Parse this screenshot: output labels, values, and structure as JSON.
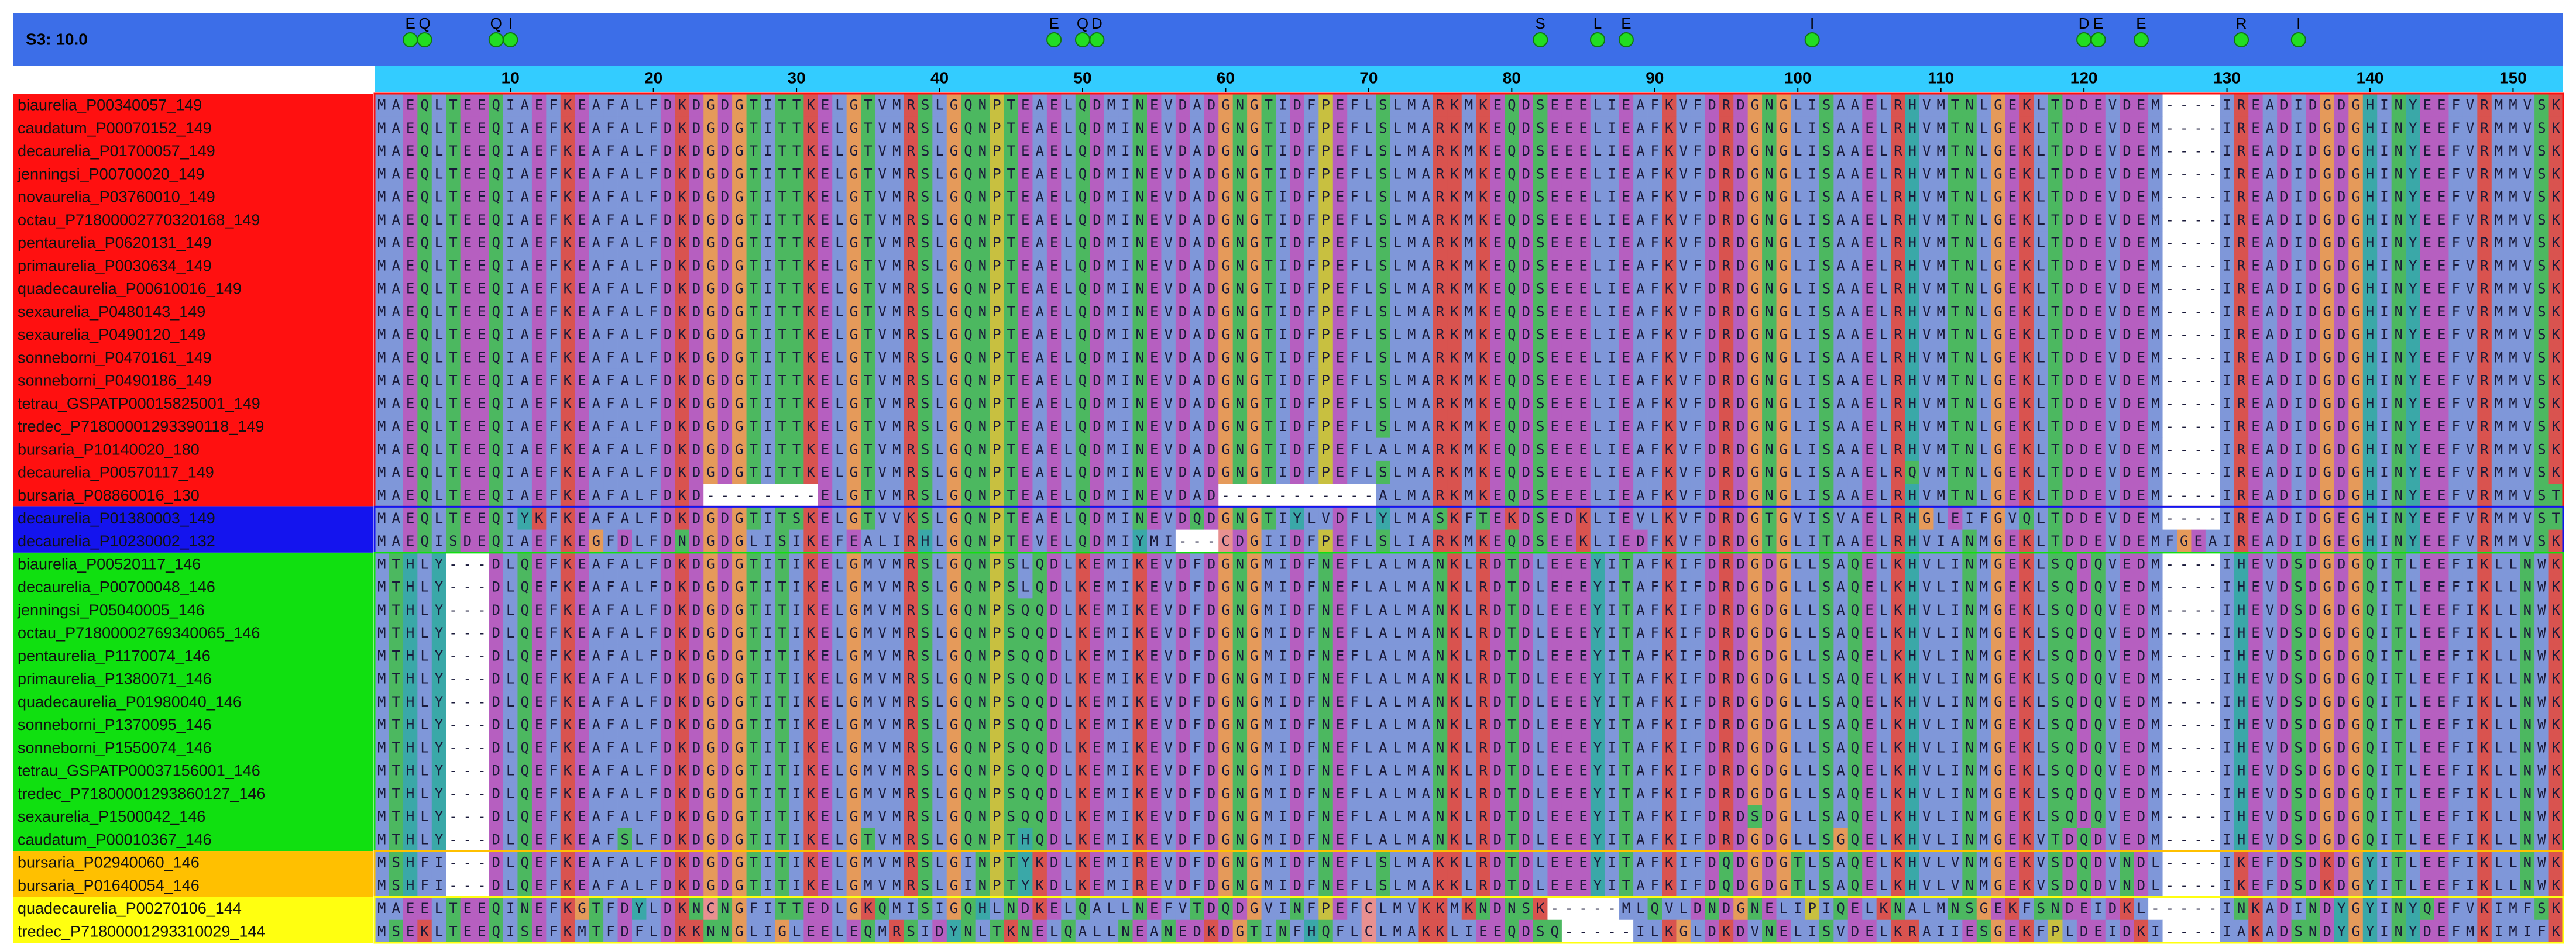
{
  "header": {
    "title": "S3: 10.0"
  },
  "markers": [
    {
      "label": "E",
      "column": 3
    },
    {
      "label": "Q",
      "column": 4
    },
    {
      "label": "Q",
      "column": 9
    },
    {
      "label": "I",
      "column": 10
    },
    {
      "label": "E",
      "column": 48
    },
    {
      "label": "Q",
      "column": 50
    },
    {
      "label": "D",
      "column": 51
    },
    {
      "label": "S",
      "column": 82
    },
    {
      "label": "L",
      "column": 86
    },
    {
      "label": "E",
      "column": 88
    },
    {
      "label": "I",
      "column": 101
    },
    {
      "label": "D",
      "column": 120
    },
    {
      "label": "E",
      "column": 121
    },
    {
      "label": "E",
      "column": 124
    },
    {
      "label": "R",
      "column": 131
    },
    {
      "label": "I",
      "column": 135
    }
  ],
  "ruler": {
    "ticks": [
      10,
      20,
      30,
      40,
      50,
      60,
      70,
      80,
      90,
      100,
      110,
      120,
      130,
      140,
      150
    ]
  },
  "residue_colors": {
    "A": "#7f97d9",
    "I": "#7f97d9",
    "L": "#7f97d9",
    "M": "#7f97d9",
    "F": "#7f97d9",
    "W": "#7f97d9",
    "V": "#7f97d9",
    "K": "#d9534f",
    "R": "#d9534f",
    "D": "#b65fc0",
    "E": "#b65fc0",
    "S": "#4cb860",
    "T": "#4cb860",
    "N": "#4cb860",
    "Q": "#4cb860",
    "G": "#e59a5a",
    "P": "#c8c040",
    "H": "#3aa8a8",
    "Y": "#3aa8a8",
    "C": "#e89090",
    "-": "#ffffff"
  },
  "groups": [
    {
      "color": "#ff1010",
      "rows": [
        {
          "name": "biaurelia_P00340057_149",
          "sequence": "MAEQLTEEQIAEFKEAFALFDKDGDGTITTKELGTVMRSLGQNPTEAELQDMINEVDADGNGTIDFPEFLSLMARKMKEQDSEEELIEAFKVFDRDGNGLISAAELRHVMTNLGEKLTDDEVDEM----IREADIDGDGHINYEEFVRMMVSK"
        },
        {
          "name": "caudatum_P00070152_149",
          "sequence": "MAEQLTEEQIAEFKEAFALFDKDGDGTITTKELGTVMRSLGQNPTEAELQDMINEVDADGNGTIDFPEFLSLMARKMKEQDSEEELIEAFKVFDRDGNGLISAAELRHVMTNLGEKLTDDEVDEM----IREADIDGDGHINYEEFVRMMVSK"
        },
        {
          "name": "decaurelia_P01700057_149",
          "sequence": "MAEQLTEEQIAEFKEAFALFDKDGDGTITTKELGTVMRSLGQNPTEAELQDMINEVDADGNGTIDFPEFLSLMARKMKEQDSEEELIEAFKVFDRDGNGLISAAELRHVMTNLGEKLTDDEVDEM----IREADIDGDGHINYEEFVRMMVSK"
        },
        {
          "name": "jenningsi_P00700020_149",
          "sequence": "MAEQLTEEQIAEFKEAFALFDKDGDGTITTKELGTVMRSLGQNPTEAELQDMINEVDADGNGTIDFPEFLSLMARKMKEQDSEEELIEAFKVFDRDGNGLISAAELRHVMTNLGEKLTDDEVDEM----IREADIDGDGHINYEEFVRMMVSK"
        },
        {
          "name": "novaurelia_P03760010_149",
          "sequence": "MAEQLTEEQIAEFKEAFALFDKDGDGTITTKELGTVMRSLGQNPTEAELQDMINEVDADGNGTIDFPEFLSLMARKMKEQDSEEELIEAFKVFDRDGNGLISAAELRHVMTNLGEKLTDDEVDEM----IREADIDGDGHINYEEFVRMMVSK"
        },
        {
          "name": "octau_P71800002770320168_149",
          "sequence": "MAEQLTEEQIAEFKEAFALFDKDGDGTITTKELGTVMRSLGQNPTEAELQDMINEVDADGNGTIDFPEFLSLMARKMKEQDSEEELIEAFKVFDRDGNGLISAAELRHVMTNLGEKLTDDEVDEM----IREADIDGDGHINYEEFVRMMVSK"
        },
        {
          "name": "pentaurelia_P0620131_149",
          "sequence": "MAEQLTEEQIAEFKEAFALFDKDGDGTITTKELGTVMRSLGQNPTEAELQDMINEVDADGNGTIDFPEFLSLMARKMKEQDSEEELIEAFKVFDRDGNGLISAAELRHVMTNLGEKLTDDEVDEM----IREADIDGDGHINYEEFVRMMVSK"
        },
        {
          "name": "primaurelia_P0030634_149",
          "sequence": "MAEQLTEEQIAEFKEAFALFDKDGDGTITTKELGTVMRSLGQNPTEAELQDMINEVDADGNGTIDFPEFLSLMARKMKEQDSEEELIEAFKVFDRDGNGLISAAELRHVMTNLGEKLTDDEVDEM----IREADIDGDGHINYEEFVRMMVSK"
        },
        {
          "name": "quadecaurelia_P00610016_149",
          "sequence": "MAEQLTEEQIAEFKEAFALFDKDGDGTITTKELGTVMRSLGQNPTEAELQDMINEVDADGNGTIDFPEFLSLMARKMKEQDSEEELIEAFKVFDRDGNGLISAAELRHVMTNLGEKLTDDEVDEM----IREADIDGDGHINYEEFVRMMVSK"
        },
        {
          "name": "sexaurelia_P0480143_149",
          "sequence": "MAEQLTEEQIAEFKEAFALFDKDGDGTITTKELGTVMRSLGQNPTEAELQDMINEVDADGNGTIDFPEFLSLMARKMKEQDSEEELIEAFKVFDRDGNGLISAAELRHVMTNLGEKLTDDEVDEM----IREADIDGDGHINYEEFVRMMVSK"
        },
        {
          "name": "sexaurelia_P0490120_149",
          "sequence": "MAEQLTEEQIAEFKEAFALFDKDGDGTITTKELGTVMRSLGQNPTEAELQDMINEVDADGNGTIDFPEFLSLMARKMKEQDSEEELIEAFKVFDRDGNGLISAAELRHVMTNLGEKLTDDEVDEM----IREADIDGDGHINYEEFVRMMVSK"
        },
        {
          "name": "sonneborni_P0470161_149",
          "sequence": "MAEQLTEEQIAEFKEAFALFDKDGDGTITTKELGTVMRSLGQNPTEAELQDMINEVDADGNGTIDFPEFLSLMARKMKEQDSEEELIEAFKVFDRDGNGLISAAELRHVMTNLGEKLTDDEVDEM----IREADIDGDGHINYEEFVRMMVSK"
        },
        {
          "name": "sonneborni_P0490186_149",
          "sequence": "MAEQLTEEQIAEFKEAFALFDKDGDGTITTKELGTVMRSLGQNPTEAELQDMINEVDADGNGTIDFPEFLSLMARKMKEQDSEEELIEAFKVFDRDGNGLISAAELRHVMTNLGEKLTDDEVDEM----IREADIDGDGHINYEEFVRMMVSK"
        },
        {
          "name": "tetrau_GSPATP00015825001_149",
          "sequence": "MAEQLTEEQIAEFKEAFALFDKDGDGTITTKELGTVMRSLGQNPTEAELQDMINEVDADGNGTIDFPEFLSLMARKMKEQDSEEELIEAFKVFDRDGNGLISAAELRHVMTNLGEKLTDDEVDEM----IREADIDGDGHINYEEFVRMMVSK"
        },
        {
          "name": "tredec_P71800001293390118_149",
          "sequence": "MAEQLTEEQIAEFKEAFALFDKDGDGTITTKELGTVMRSLGQNPTEAELQDMINEVDADGNGTIDFPEFLSLMARKMKEQDSEEELIEAFKVFDRDGNGLISAAELRHVMTNLGEKLTDDEVDEM----IREADIDGDGHINYEEFVRMMVSK"
        },
        {
          "name": "bursaria_P10140020_180",
          "sequence": "MAEQLTEEQIAEFKEAFALFDKDGDGTITTKELGTVMRSLGQNPTEAELQDMINEVDADGNGTIDFPEFLALMARKMKEQDSEEELIEAFKVFDRDGNGLISAAELRHVMTNLGEKLTDDEVDEM----IREADIDGDGHINYEEFVRMMVSK"
        },
        {
          "name": "decaurelia_P00570117_149",
          "sequence": "MAEQLTEEQIAEFKEAFALFDKDGDGTITTKELGTVMRSLGQNPTEAELQDMINEVDADGNGTIDFPEFLSLMARKMKEQDSEEELIEAFKVFDRDGNGLISAAELRQVMTNLGEKLTDDEVDEM----IREADIDGDGHINYEEFVRMMVSK"
        },
        {
          "name": "bursaria_P08860016_130",
          "sequence": "MAEQLTEEQIAEFKEAFALFDKD--------ELGTVMRSLGQNPTEAELQDMINEVDAD-----------ALMARKMKEQDSEEELIEAFKVFDRDGNGLISAAELRHVMTNLGEKLTDDEVDEM----IREADIDGDGHINYEEFVRMMVST"
        }
      ]
    },
    {
      "color": "#1414ee",
      "rows": [
        {
          "name": "decaurelia_P01380003_149",
          "sequence": "MAEQLTEEQIYKFKEAFALFDKDGDGTITSKELGTVVKSLGQNPTEAELQDMINEVDQDGNGTIYLVDFLYLMASKFTEKDSEDKLIEVLKVFDRDGTGVISVAELRHGLEIFGVQLTDDEVDEM----IREADIDGEGHINYEEFVRMMVST"
        },
        {
          "name": "decaurelia_P10230002_132",
          "sequence": "MAEQISDEQIAEFKEGFDLFDNDGDGLISIKEFEALIRHLGQNPTEVELQDMIYMI---CDGIIDFPEFLSLIARKMKEQDSEEKLIEDFKVFDRDGTGLITAAELRHVIANMGEKLTDDEVDEMFGEAIREADIDGEGHINYEEFVRMMVSK"
        }
      ]
    },
    {
      "color": "#10e010",
      "rows": [
        {
          "name": "biaurelia_P00520117_146",
          "sequence": "MTHLY---DLQEFKEAFALFDKDGDGTITIKELGMVMRSLGQNPSLQDLKEMIKEVDFDGNGMIDFNEFLALMANKLRDTDLEEEYITAFKIFDRDGDGLLSAQELKHVLINMGEKLSQDQVEDM----IHEVDSDGDGQITLEEFIKLLNWK"
        },
        {
          "name": "decaurelia_P00700048_146",
          "sequence": "MTHLY---DLQEFKEAFALFDKDGDGTITIKELGMVMRSLGQNPSLQDLKEMIKEVDFDGNGMIDFNEFLALMANKLRDTDLEEEYITAFKIFDRDGDGLLSAQELKHVLINMGEKLSQDQVEDM----IHEVDSDGDGQITLEEFIKLLNWK"
        },
        {
          "name": "jenningsi_P05040005_146",
          "sequence": "MTHLY---DLQEFKEAFALFDKDGDGTITIKELGMVMRSLGQNPSQQDLKEMIKEVDFDGNGMIDFNEFLALMANKLRDTDLEEEYITAFKIFDRDGDGLLSAQELKHVLINMGEKLSQDQVEDM----IHEVDSDGDGQITLEEFIKLLNWK"
        },
        {
          "name": "octau_P71800002769340065_146",
          "sequence": "MTHLY---DLQEFKEAFALFDKDGDGTITIKELGMVMRSLGQNPSQQDLKEMIKEVDFDGNGMIDFNEFLALMANKLRDTDLEEEYITAFKIFDRDGDGLLSAQELKHVLINMGEKLSQDQVEDM----IHEVDSDGDGQITLEEFIKLLNWK"
        },
        {
          "name": "pentaurelia_P1170074_146",
          "sequence": "MTHLY---DLQEFKEAFALFDKDGDGTITIKELGMVMRSLGQNPSQQDLKEMIKEVDFDGNGMIDFNEFLALMANKLRDTDLEEEYITAFKIFDRDGDGLLSAQELKHVLINMGEKLSQDQVEDM----IHEVDSDGDGQITLEEFIKLLNWK"
        },
        {
          "name": "primaurelia_P1380071_146",
          "sequence": "MTHLY---DLQEFKEAFALFDKDGDGTITIKELGMVMRSLGQNPSQQDLKEMIKEVDFDGNGMIDFNEFLALMANKLRDTDLEEEYITAFKIFDRDGDGLLSAQELKHVLINMGEKLSQDQVEDM----IHEVDSDGDGQITLEEFIKLLNWK"
        },
        {
          "name": "quadecaurelia_P01980040_146",
          "sequence": "MTHLY---DLQEFKEAFALFDKDGDGTITIKELGMVMRSLGQNPSQQDLKEMIKEVDFDGNGMIDFNEFLALMANKLRDTDLEEEYITAFKIFDRDGDGLLSAQELKHVLINMGEKLSQDQVEDM----IHEVDSDGDGQITLEEFIKLLNWK"
        },
        {
          "name": "sonneborni_P1370095_146",
          "sequence": "MTHLY---DLQEFKEAFALFDKDGDGTITIKELGMVMRSLGQNPSQQDLKEMIKEVDFDGNGMIDFNEFLALMANKLRDTDLEEEYITAFKIFDRDGDGLLSAQELKHVLINMGEKLSQDQVEDM----IHEVDSDGDGQITLEEFIKLLNWK"
        },
        {
          "name": "sonneborni_P1550074_146",
          "sequence": "MTHLY---DLQEFKEAFALFDKDGDGTITIKELGMVMRSLGQNPSQQDLKEMIKEVDFDGNGMIDFNEFLALMANKLRDTDLEEEYITAFKIFDRDGDGLLSAQELKHVLINMGEKLSQDQVEDM----IHEVDSDGDGQITLEEFIKLLNWK"
        },
        {
          "name": "tetrau_GSPATP00037156001_146",
          "sequence": "MTHLY---DLQEFKEAFALFDKDGDGTITIKELGMVMRSLGQNPSQQDLKEMIKEVDFDGNGMIDFNEFLALMANKLRDTDLEEEYITAFKIFDRDGDGLLSAQELKHVLINMGEKLSQDQVEDM----IHEVDSDGDGQITLEEFIKLLNWK"
        },
        {
          "name": "tredec_P71800001293860127_146",
          "sequence": "MTHLY---DLQEFKEAFALFDKDGDGTITIKELGMVMRSLGQNPSQQDLKEMIKEVDFDGNGMIDFNEFLALMANKLRDTDLEEEYITAFKIFDRDGDGLLSAQELKHVLINMGEKLSQDQVEDM----IHEVDSDGDGQITLEEFIKLLNWK"
        },
        {
          "name": "sexaurelia_P1500042_146",
          "sequence": "MTHLY---DLQEFKEAFALFDKDGDGTITIKELGMVMRSLGQNPSQQDLKEMIKEVDFDGNGMIDFNEFLALMANKLRDTDLEEEYITAFKIFDRDSDGLLSAQELKHVLINMGEKLSQDQVEDM----IHEVDSDGDGQITLEEFIKLLNWK"
        },
        {
          "name": "caudatum_P00010367_146",
          "sequence": "MTHLY---DLQEFKEAFSLFDKDGDGTITIKELGTVMRSLGQNPTHQDLKEMIKEVDFDGNGMIDFNEFLALMANKLRDTDLEEEYITAFKIFDRDGDGLLSGQELKHVLINMGEKVTDQDVEDM----IHEVDSDGDGQITLEEFIKLLNWK"
        }
      ]
    },
    {
      "color": "#ffc000",
      "rows": [
        {
          "name": "bursaria_P02940060_146",
          "sequence": "MSHFI---DLQEFKEAFALFDKDGDGTITIKELGMVMRSLGINPTYKDLKEMIREVDFDGNGMIDFNEFLSLMAKKLRDTDLEEEYITAFKIFDQDGDGTLSAQELKHVLVNMGEKVSDQDVNDL----IKEFDSDKDGYITLEEFIKLLNWK"
        },
        {
          "name": "bursaria_P01640054_146",
          "sequence": "MSHFI---DLQEFKEAFALFDKDGDGTITIKELGMVMRSLGINPTYKDLKEMIREVDFDGNGMIDFNEFLSLMAKKLRDTDLEEEYITAFKIFDQDGDGTLSAQELKHVLVNMGEKVSDQDVNDL----IKEFDSDKDGYITLEEFIKLLNWK"
        }
      ]
    },
    {
      "color": "#ffff10",
      "rows": [
        {
          "name": "quadecaurelia_P00270106_144",
          "sequence": "MAEELTEEQINEFKGTFDYLDKNCNGFITTEDLGKQMISIGQHLNDKELQALLNEFVTDQDGVINFPEFCLMVKKMKNDNSK-----MLQVLDNDGNELIPIQELKNALMNSGEKFSNDEIDKL-----INKADINDYGYINYQEFVKIMFSK"
        },
        {
          "name": "tredec_P71800001293310029_144",
          "sequence": "MSEKLTEEQISEFKMTFDFLDKKNNGLIGLEELEQMRSIDYNLTKNELQALLNEANEDKDGTINFHQFLCLMAKKLIEEQDSQ-----ILKGLDKDVNELISVDELKRAIIESGEKFPLDEIDKI----IAKADSNDYGYINYDEFMKIMIFK"
        }
      ]
    }
  ]
}
